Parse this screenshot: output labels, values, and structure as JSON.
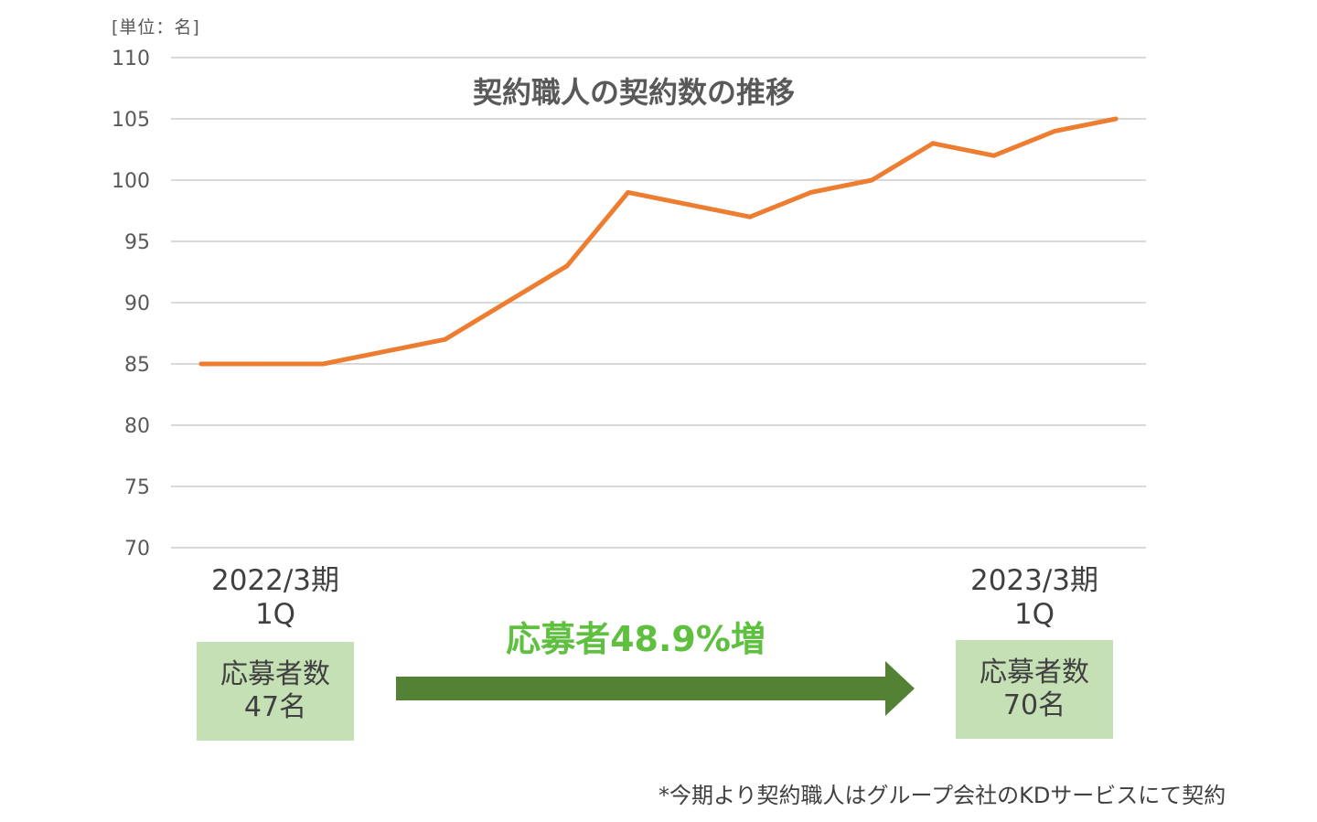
{
  "chart_data": {
    "type": "line",
    "title": "契約職人の契約数の推移",
    "unit_label": "[単位：名]",
    "ylim": [
      70,
      110
    ],
    "yticks": [
      "110",
      "105",
      "100",
      "95",
      "90",
      "85",
      "80",
      "75",
      "70"
    ],
    "grid": true,
    "series": [
      {
        "color": "#ed7d31",
        "values": [
          85,
          85,
          85,
          86,
          87,
          90,
          93,
          99,
          98,
          97,
          99,
          100,
          103,
          102,
          104,
          105
        ]
      }
    ]
  },
  "periods": {
    "start": {
      "line1": "2022/3期",
      "line2": "1Q"
    },
    "end": {
      "line1": "2023/3期",
      "line2": "1Q"
    }
  },
  "boxes": {
    "start": {
      "title": "応募者数",
      "value": "47名"
    },
    "end": {
      "title": "応募者数",
      "value": "70名"
    }
  },
  "growth_label": "応募者48.9%増",
  "footnote": "*今期より契約職人はグループ会社のKDサービスにて契約",
  "colors": {
    "line": "#ed7d31",
    "arrow": "#548235",
    "growth_text": "#5fbf3f",
    "box": "#c5e0b4",
    "grid": "#d9d9d9"
  }
}
